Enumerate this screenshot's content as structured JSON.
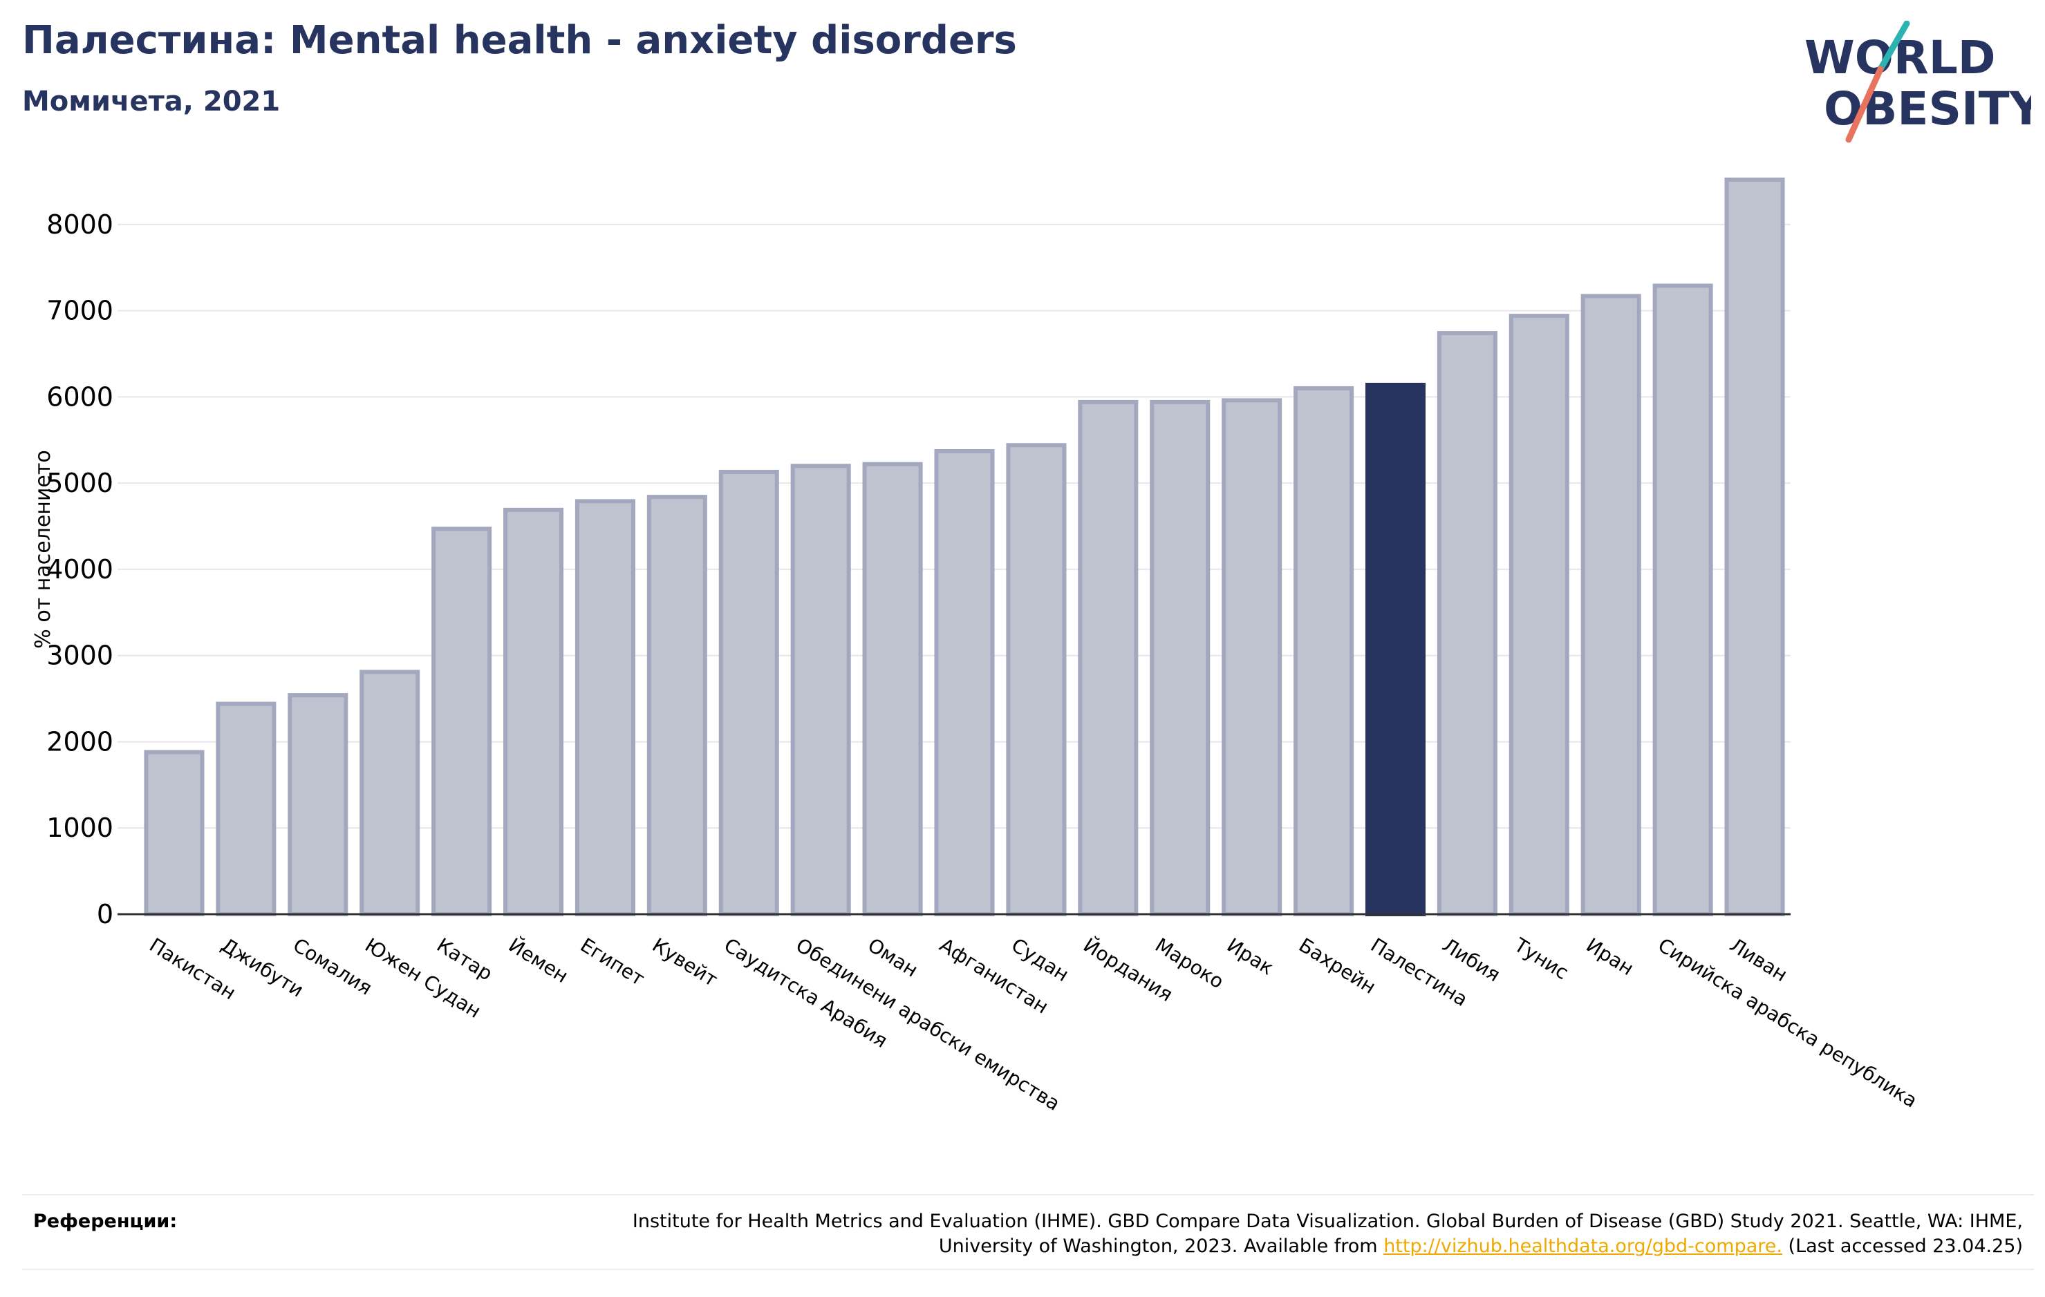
{
  "header": {
    "title": "Палестина: Mental health - anxiety disorders",
    "subtitle": "Момичета, 2021"
  },
  "logo": {
    "line1": "WORLD",
    "line2": "OBESITY"
  },
  "colors": {
    "highlight_bar": "#283460",
    "bar_fill": "#bfc2cf",
    "bar_outline": "#a3a8bf",
    "title_text": "#283460",
    "link": "#f0a900",
    "logo_teal": "#2ab3b1",
    "logo_coral": "#e8735f"
  },
  "chart_data": {
    "type": "bar",
    "ylabel": "% от населението",
    "ylim": [
      0,
      8600
    ],
    "yticks": [
      0,
      1000,
      2000,
      3000,
      4000,
      5000,
      6000,
      7000,
      8000
    ],
    "grid": true,
    "highlight": "Палестина",
    "categories": [
      "Пакистан",
      "Джибути",
      "Сомалия",
      "Южен Судан",
      "Катар",
      "Йемен",
      "Египет",
      "Кувейт",
      "Саудитска Арабия",
      "Обединени арабски емирства",
      "Оман",
      "Афганистан",
      "Судан",
      "Йордания",
      "Мароко",
      "Ирак",
      "Бахрейн",
      "Палестина",
      "Либия",
      "Тунис",
      "Иран",
      "Сирийска арабска република",
      "Ливан"
    ],
    "values": [
      1880,
      2440,
      2540,
      2810,
      4470,
      4690,
      4790,
      4840,
      5130,
      5200,
      5220,
      5370,
      5440,
      5940,
      5940,
      5960,
      6100,
      6140,
      6740,
      6940,
      7170,
      7290,
      8520
    ]
  },
  "references": {
    "label": "Референции:",
    "text_before_link": "Institute for Health Metrics and Evaluation (IHME). GBD Compare Data Visualization. Global Burden of Disease (GBD) Study 2021. Seattle, WA: IHME, University of Washington, 2023. Available from ",
    "link": "http://vizhub.healthdata.org/gbd-compare.",
    "text_after_link": " (Last accessed 23.04.25)"
  }
}
